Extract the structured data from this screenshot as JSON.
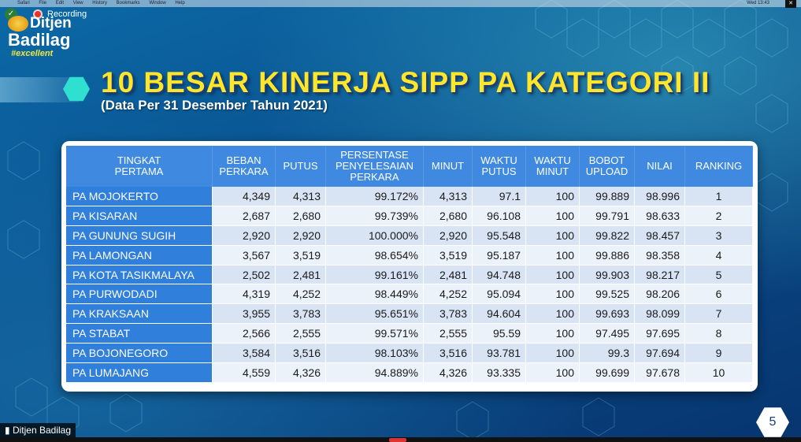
{
  "menubar": {
    "items": [
      "Safari",
      "File",
      "Edit",
      "View",
      "History",
      "Bookmarks",
      "Window",
      "Help"
    ],
    "right": "Wed 13:43"
  },
  "recording": {
    "label": "Recording"
  },
  "logo": {
    "line1": "Ditjen",
    "line2": "Badilag",
    "line3": "#excellent"
  },
  "slide": {
    "title": "10 BESAR KINERJA SIPP PA KATEGORI II",
    "subtitle": "(Data Per 31 Desember Tahun 2021)",
    "page_number": "5"
  },
  "table": {
    "headers": {
      "tingkat": [
        "TINGKAT",
        "PERTAMA"
      ],
      "beban": [
        "BEBAN",
        "PERKARA"
      ],
      "putus": [
        "PUTUS"
      ],
      "persentase": [
        "PERSENTASE",
        "PENYELESAIAN",
        "PERKARA"
      ],
      "minut": [
        "MINUT"
      ],
      "waktu_putus": [
        "WAKTU",
        "PUTUS"
      ],
      "waktu_minut": [
        "WAKTU",
        "MINUT"
      ],
      "bobot": [
        "BOBOT",
        "UPLOAD"
      ],
      "nilai": [
        "NILAI"
      ],
      "ranking": [
        "RANKING"
      ]
    },
    "rows": [
      [
        "PA MOJOKERTO",
        "4,349",
        "4,313",
        "99.172%",
        "4,313",
        "97.1",
        "100",
        "99.889",
        "98.996",
        "1"
      ],
      [
        "PA KISARAN",
        "2,687",
        "2,680",
        "99.739%",
        "2,680",
        "96.108",
        "100",
        "99.791",
        "98.633",
        "2"
      ],
      [
        "PA GUNUNG SUGIH",
        "2,920",
        "2,920",
        "100.000%",
        "2,920",
        "95.548",
        "100",
        "99.822",
        "98.457",
        "3"
      ],
      [
        "PA LAMONGAN",
        "3,567",
        "3,519",
        "98.654%",
        "3,519",
        "95.187",
        "100",
        "99.886",
        "98.358",
        "4"
      ],
      [
        "PA KOTA TASIKMALAYA",
        "2,502",
        "2,481",
        "99.161%",
        "2,481",
        "94.748",
        "100",
        "99.903",
        "98.217",
        "5"
      ],
      [
        "PA PURWODADI",
        "4,319",
        "4,252",
        "98.449%",
        "4,252",
        "95.094",
        "100",
        "99.525",
        "98.206",
        "6"
      ],
      [
        "PA KRAKSAAN",
        "3,955",
        "3,783",
        "95.651%",
        "3,783",
        "94.604",
        "100",
        "99.693",
        "98.099",
        "7"
      ],
      [
        "PA STABAT",
        "2,566",
        "2,555",
        "99.571%",
        "2,555",
        "95.59",
        "100",
        "97.495",
        "97.695",
        "8"
      ],
      [
        "PA BOJONEGORO",
        "3,584",
        "3,516",
        "98.103%",
        "3,516",
        "93.781",
        "100",
        "99.3",
        "97.694",
        "9"
      ],
      [
        "PA LUMAJANG",
        "4,559",
        "4,326",
        "94.889%",
        "4,326",
        "93.335",
        "100",
        "99.699",
        "97.678",
        "10"
      ]
    ]
  },
  "participant": {
    "name": "Ditjen Badilag"
  },
  "colors": {
    "title": "#ffe62b",
    "header": "#3f8ae0",
    "name_cell": "#2f7fdb",
    "row_light": "#d8e4f4"
  }
}
